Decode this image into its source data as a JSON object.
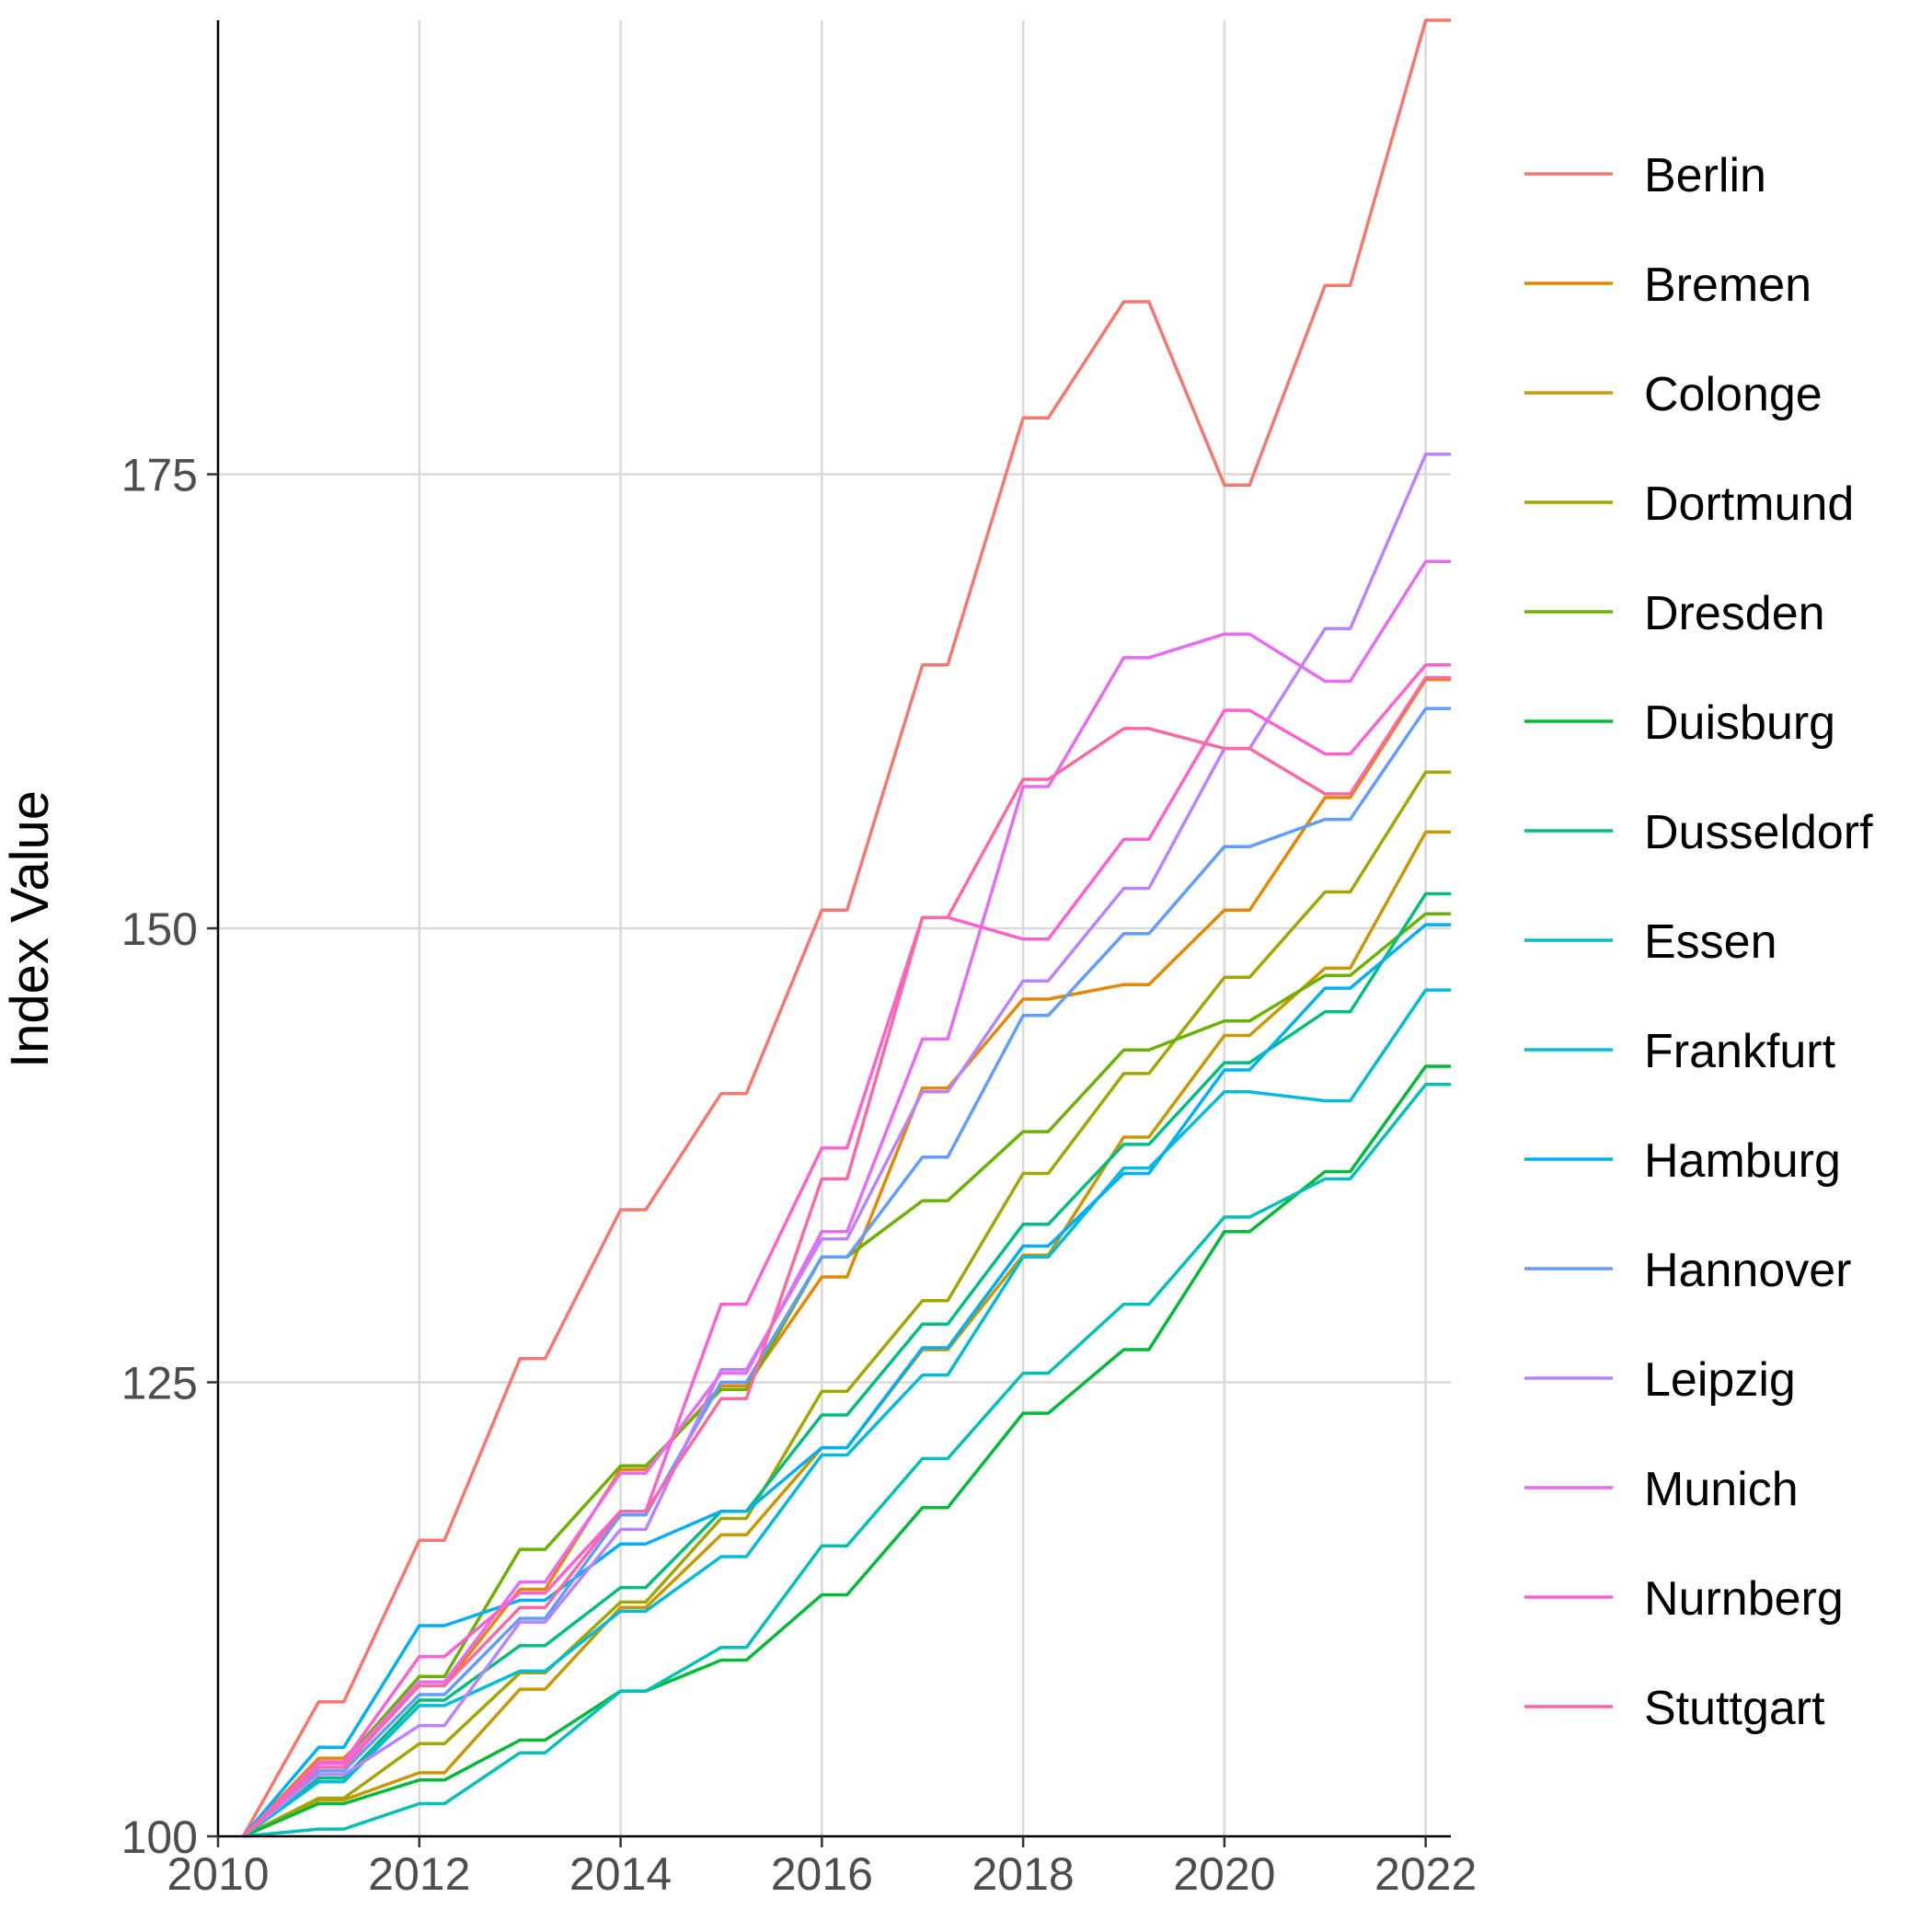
{
  "chart_data": {
    "type": "line",
    "title": "",
    "xlabel": "",
    "ylabel": "Index Value",
    "xlim": [
      2010,
      2022.25
    ],
    "ylim": [
      100,
      200
    ],
    "x_ticks": [
      "2010",
      "2012",
      "2014",
      "2016",
      "2018",
      "2020",
      "2022"
    ],
    "y_ticks": [
      "100",
      "125",
      "150",
      "175"
    ],
    "grid": true,
    "legend_position": "right",
    "x": [
      2010.25,
      2011,
      2011.25,
      2012,
      2012.25,
      2013,
      2013.25,
      2014,
      2014.25,
      2015,
      2015.25,
      2016,
      2016.25,
      2017,
      2017.25,
      2018,
      2018.25,
      2019,
      2019.25,
      2020,
      2020.25,
      2021,
      2021.25,
      2022,
      2022.25
    ],
    "series": [
      {
        "name": "Berlin",
        "color": "#F8766D",
        "values": [
          100,
          107.4,
          107.4,
          116.3,
          116.3,
          126.3,
          126.3,
          134.5,
          134.5,
          140.9,
          140.9,
          151.0,
          151.0,
          164.5,
          164.5,
          178.1,
          178.1,
          184.5,
          184.5,
          174.4,
          174.4,
          185.4,
          185.4,
          200.0,
          200.0
        ]
      },
      {
        "name": "Bremen",
        "color": "#E58700",
        "values": [
          100,
          104.3,
          104.3,
          108.3,
          108.3,
          113.6,
          113.6,
          120.2,
          120.2,
          124.8,
          124.8,
          130.8,
          130.8,
          141.2,
          141.2,
          146.1,
          146.1,
          146.9,
          146.9,
          151.0,
          151.0,
          157.2,
          157.2,
          163.7,
          163.7
        ]
      },
      {
        "name": "Colonge",
        "color": "#C99800",
        "values": [
          100,
          102.0,
          102.0,
          103.5,
          103.5,
          108.1,
          108.1,
          112.6,
          112.6,
          116.6,
          116.6,
          121.4,
          121.4,
          126.8,
          126.8,
          132.0,
          132.0,
          138.5,
          138.5,
          144.1,
          144.1,
          147.8,
          147.8,
          155.3,
          155.3
        ]
      },
      {
        "name": "Dortmund",
        "color": "#A3A500",
        "values": [
          100,
          102.1,
          102.1,
          105.1,
          105.1,
          109.0,
          109.0,
          112.9,
          112.9,
          117.5,
          117.5,
          124.5,
          124.5,
          129.5,
          129.5,
          136.5,
          136.5,
          142.0,
          142.0,
          147.3,
          147.3,
          152.0,
          152.0,
          158.6,
          158.6
        ]
      },
      {
        "name": "Dresden",
        "color": "#6BB100",
        "values": [
          100,
          104.1,
          104.1,
          108.8,
          108.8,
          115.8,
          115.8,
          120.4,
          120.4,
          124.6,
          124.6,
          131.9,
          131.9,
          135.0,
          135.0,
          138.8,
          138.8,
          143.3,
          143.3,
          144.9,
          144.9,
          147.4,
          147.4,
          150.8,
          150.8
        ]
      },
      {
        "name": "Duisburg",
        "color": "#00BA38",
        "values": [
          100,
          101.8,
          101.8,
          103.1,
          103.1,
          105.3,
          105.3,
          108.0,
          108.0,
          109.7,
          109.7,
          113.3,
          113.3,
          118.1,
          118.1,
          123.3,
          123.3,
          126.8,
          126.8,
          133.3,
          133.3,
          136.6,
          136.6,
          142.4,
          142.4
        ]
      },
      {
        "name": "Dusseldorf",
        "color": "#00BF7D",
        "values": [
          100,
          103.2,
          103.2,
          107.5,
          107.5,
          110.5,
          110.5,
          113.7,
          113.7,
          117.9,
          117.9,
          123.2,
          123.2,
          128.2,
          128.2,
          133.7,
          133.7,
          138.1,
          138.1,
          142.6,
          142.6,
          145.4,
          145.4,
          151.9,
          151.9
        ]
      },
      {
        "name": "Essen",
        "color": "#00C0B8",
        "values": [
          100,
          100.4,
          100.4,
          101.8,
          101.8,
          104.6,
          104.6,
          108.0,
          108.0,
          110.4,
          110.4,
          116.0,
          116.0,
          120.8,
          120.8,
          125.5,
          125.5,
          129.3,
          129.3,
          134.1,
          134.1,
          136.2,
          136.2,
          141.4,
          141.4
        ]
      },
      {
        "name": "Frankfurt",
        "color": "#00BCD8",
        "values": [
          100,
          103.0,
          103.0,
          107.2,
          107.2,
          109.1,
          109.1,
          112.4,
          112.4,
          115.4,
          115.4,
          121.0,
          121.0,
          125.4,
          125.4,
          131.9,
          131.9,
          136.8,
          136.8,
          141.0,
          141.0,
          140.5,
          140.5,
          146.6,
          146.6
        ]
      },
      {
        "name": "Hamburg",
        "color": "#00B0F6",
        "values": [
          100,
          104.9,
          104.9,
          111.6,
          111.6,
          113.0,
          113.0,
          116.1,
          116.1,
          117.9,
          117.9,
          121.4,
          121.4,
          126.9,
          126.9,
          132.5,
          132.5,
          136.5,
          136.5,
          142.2,
          142.2,
          146.7,
          146.7,
          150.2,
          150.2
        ]
      },
      {
        "name": "Hannover",
        "color": "#619CFF",
        "values": [
          100,
          103.6,
          103.6,
          107.8,
          107.8,
          112.0,
          112.0,
          117.7,
          117.7,
          125.0,
          125.0,
          131.9,
          131.9,
          137.4,
          137.4,
          145.2,
          145.2,
          149.7,
          149.7,
          154.5,
          154.5,
          156.0,
          156.0,
          162.1,
          162.1
        ]
      },
      {
        "name": "Leipzig",
        "color": "#B983FF",
        "values": [
          100,
          103.4,
          103.4,
          106.1,
          106.1,
          111.8,
          111.8,
          116.9,
          116.9,
          125.7,
          125.7,
          132.9,
          132.9,
          141.0,
          141.0,
          147.1,
          147.1,
          152.2,
          152.2,
          159.9,
          159.9,
          166.5,
          166.5,
          176.1,
          176.1
        ]
      },
      {
        "name": "Munich",
        "color": "#E76BF3",
        "values": [
          100,
          104.0,
          104.0,
          108.5,
          108.5,
          114.0,
          114.0,
          120.0,
          120.0,
          125.5,
          125.5,
          133.3,
          133.3,
          143.9,
          143.9,
          157.8,
          157.8,
          164.9,
          164.9,
          166.2,
          166.2,
          163.6,
          163.6,
          170.2,
          170.2
        ]
      },
      {
        "name": "Nurnberg",
        "color": "#FD61D1",
        "values": [
          100,
          104.1,
          104.1,
          109.9,
          109.9,
          113.4,
          113.4,
          117.9,
          117.9,
          129.3,
          129.3,
          137.9,
          137.9,
          150.6,
          150.6,
          149.4,
          149.4,
          154.9,
          154.9,
          162.0,
          162.0,
          159.6,
          159.6,
          164.5,
          164.5
        ]
      },
      {
        "name": "Stuttgart",
        "color": "#FF67A4",
        "values": [
          100,
          103.8,
          103.8,
          108.3,
          108.3,
          112.6,
          112.6,
          117.9,
          117.9,
          124.1,
          124.1,
          136.2,
          136.2,
          150.6,
          150.6,
          158.2,
          158.2,
          161.0,
          161.0,
          159.9,
          159.9,
          157.4,
          157.4,
          163.8,
          163.8
        ]
      }
    ]
  }
}
